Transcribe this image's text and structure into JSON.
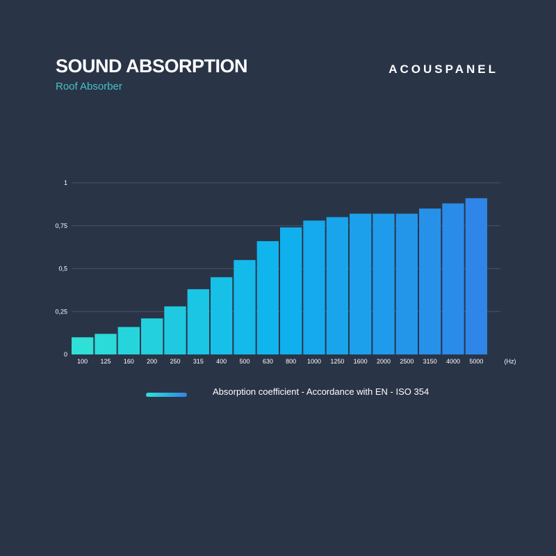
{
  "header": {
    "title": "SOUND ABSORPTION",
    "subtitle": "Roof Absorber",
    "brand": "ACOUSPANEL"
  },
  "colors": {
    "background": "#2a3447",
    "subtitle": "#45c3c4",
    "bar_start": "#2ee0d6",
    "bar_end": "#2f86e8",
    "grid": "#4a5468"
  },
  "chart_data": {
    "type": "bar",
    "categories": [
      "100",
      "125",
      "160",
      "200",
      "250",
      "315",
      "400",
      "500",
      "630",
      "800",
      "1000",
      "1250",
      "1600",
      "2000",
      "2500",
      "3150",
      "4000",
      "5000"
    ],
    "values": [
      0.1,
      0.12,
      0.16,
      0.21,
      0.28,
      0.38,
      0.45,
      0.55,
      0.66,
      0.74,
      0.78,
      0.8,
      0.82,
      0.82,
      0.82,
      0.85,
      0.88,
      0.91
    ],
    "xunit": "(Hz)",
    "ylim": [
      0,
      1
    ],
    "yticks": [
      0,
      0.25,
      0.5,
      0.75,
      1
    ],
    "ytick_labels": [
      "0",
      "0,25",
      "0,5",
      "0,75",
      "1"
    ],
    "grid": true,
    "legend": "Absorption coefficient - Accordance with EN - ISO 354",
    "legend_position": "bottom"
  }
}
